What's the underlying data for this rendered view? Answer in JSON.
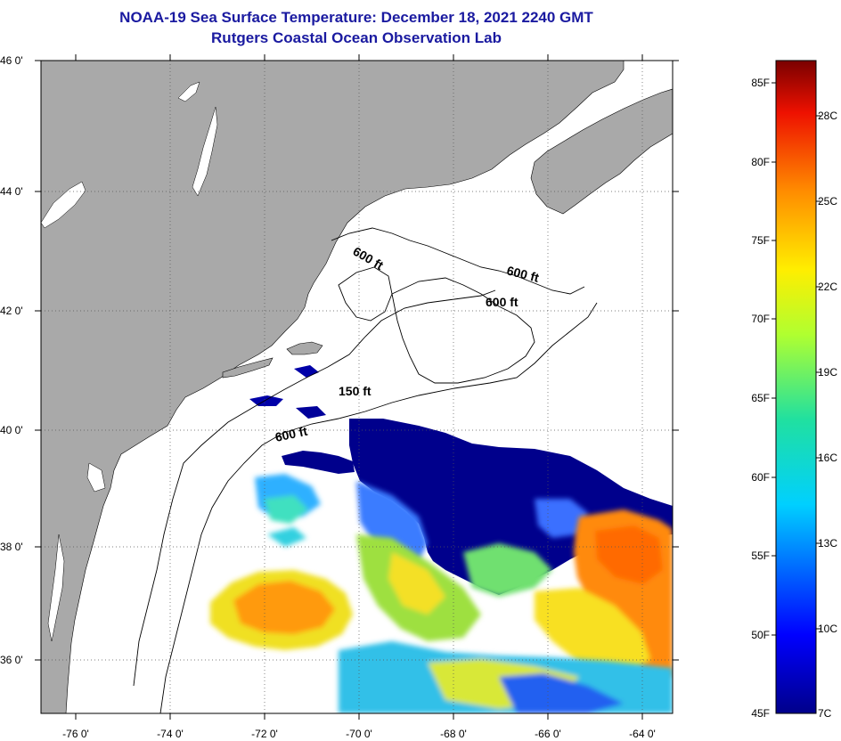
{
  "header": {
    "title_line1": "NOAA-19 Sea Surface Temperature:  December 18, 2021 2240 GMT",
    "title_line2": "Rutgers Coastal Ocean Observation Lab"
  },
  "map": {
    "lat_ticks": [
      "46 0'",
      "44 0'",
      "42 0'",
      "40 0'",
      "38 0'",
      "36 0'"
    ],
    "lon_ticks": [
      "-76 0'",
      "-74 0'",
      "-72 0'",
      "-70 0'",
      "-68 0'",
      "-66 0'",
      "-64 0'"
    ],
    "contour_labels": [
      "600 ft",
      "600 ft",
      "600 ft",
      "150 ft",
      "600 ft"
    ]
  },
  "colorbar": {
    "fahrenheit": [
      "85F",
      "80F",
      "75F",
      "70F",
      "65F",
      "60F",
      "55F",
      "50F",
      "45F"
    ],
    "celsius": [
      "28C",
      "25C",
      "22C",
      "19C",
      "16C",
      "13C",
      "10C",
      "7C"
    ]
  },
  "colors": {
    "land": "#a9a9a9",
    "cold_water": "#00008c",
    "title": "#1a1aa0"
  }
}
